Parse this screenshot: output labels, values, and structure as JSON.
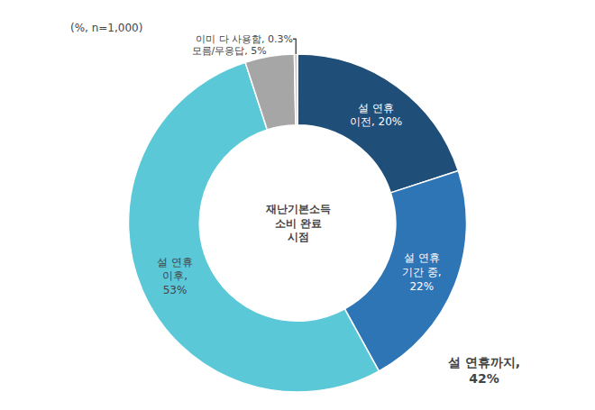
{
  "chart_data": {
    "type": "pie",
    "values": [
      20.0,
      22.0,
      53.0,
      4.7,
      0.3
    ],
    "value_labels": [
      "설 연휴\n이전, 20%",
      "설 연휴\n기간 중,\n22%",
      "설 연휴\n이후,\n53%",
      "모름/무응답, 5%",
      "이미 다 사용함, 0.3%"
    ],
    "colors": [
      "#1F4E79",
      "#2E75B6",
      "#5BC8D8",
      "#A6A6A6",
      "#C8C8C8"
    ],
    "center_text": "재난기본소득\n소비 완료\n시점",
    "subtitle": "(%, n=1,000)",
    "annotations": [
      "설 연휴까지,\n42%"
    ],
    "data_labels": true
  }
}
